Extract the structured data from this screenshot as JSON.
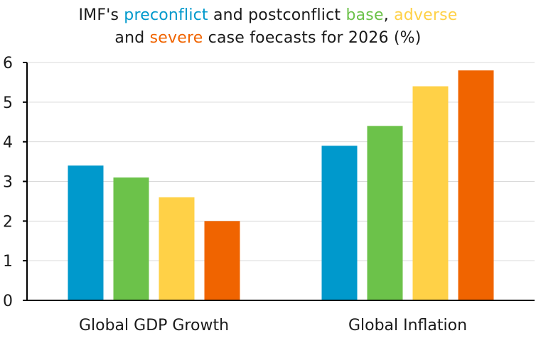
{
  "title_parts": {
    "line1_a": "IMF's ",
    "line1_b": "preconflict",
    "line1_c": " and postconflict ",
    "line1_d": "base",
    "line1_e": ", ",
    "line1_f": "adverse",
    "line2_a": "and ",
    "line2_b": "severe",
    "line2_c": " case foecasts for 2026 (%)"
  },
  "colors": {
    "preconflict": "#0099cc",
    "base": "#6cc24a",
    "adverse": "#ffd147",
    "severe": "#f06400",
    "axis": "#000000",
    "grid": "#d9d9d9"
  },
  "chart_data": {
    "type": "bar",
    "title": "IMF's preconflict and postconflict base, adverse and severe case foecasts for 2026 (%)",
    "categories": [
      "Global GDP Growth",
      "Global Inflation"
    ],
    "series": [
      {
        "name": "preconflict",
        "values": [
          3.4,
          3.9
        ]
      },
      {
        "name": "base",
        "values": [
          3.1,
          4.4
        ]
      },
      {
        "name": "adverse",
        "values": [
          2.6,
          5.4
        ]
      },
      {
        "name": "severe",
        "values": [
          2.0,
          5.8
        ]
      }
    ],
    "xlabel": "",
    "ylabel": "",
    "ylim": [
      0,
      6
    ],
    "yticks": [
      0,
      1,
      2,
      3,
      4,
      5,
      6
    ],
    "grid": true,
    "legend": "in title"
  }
}
